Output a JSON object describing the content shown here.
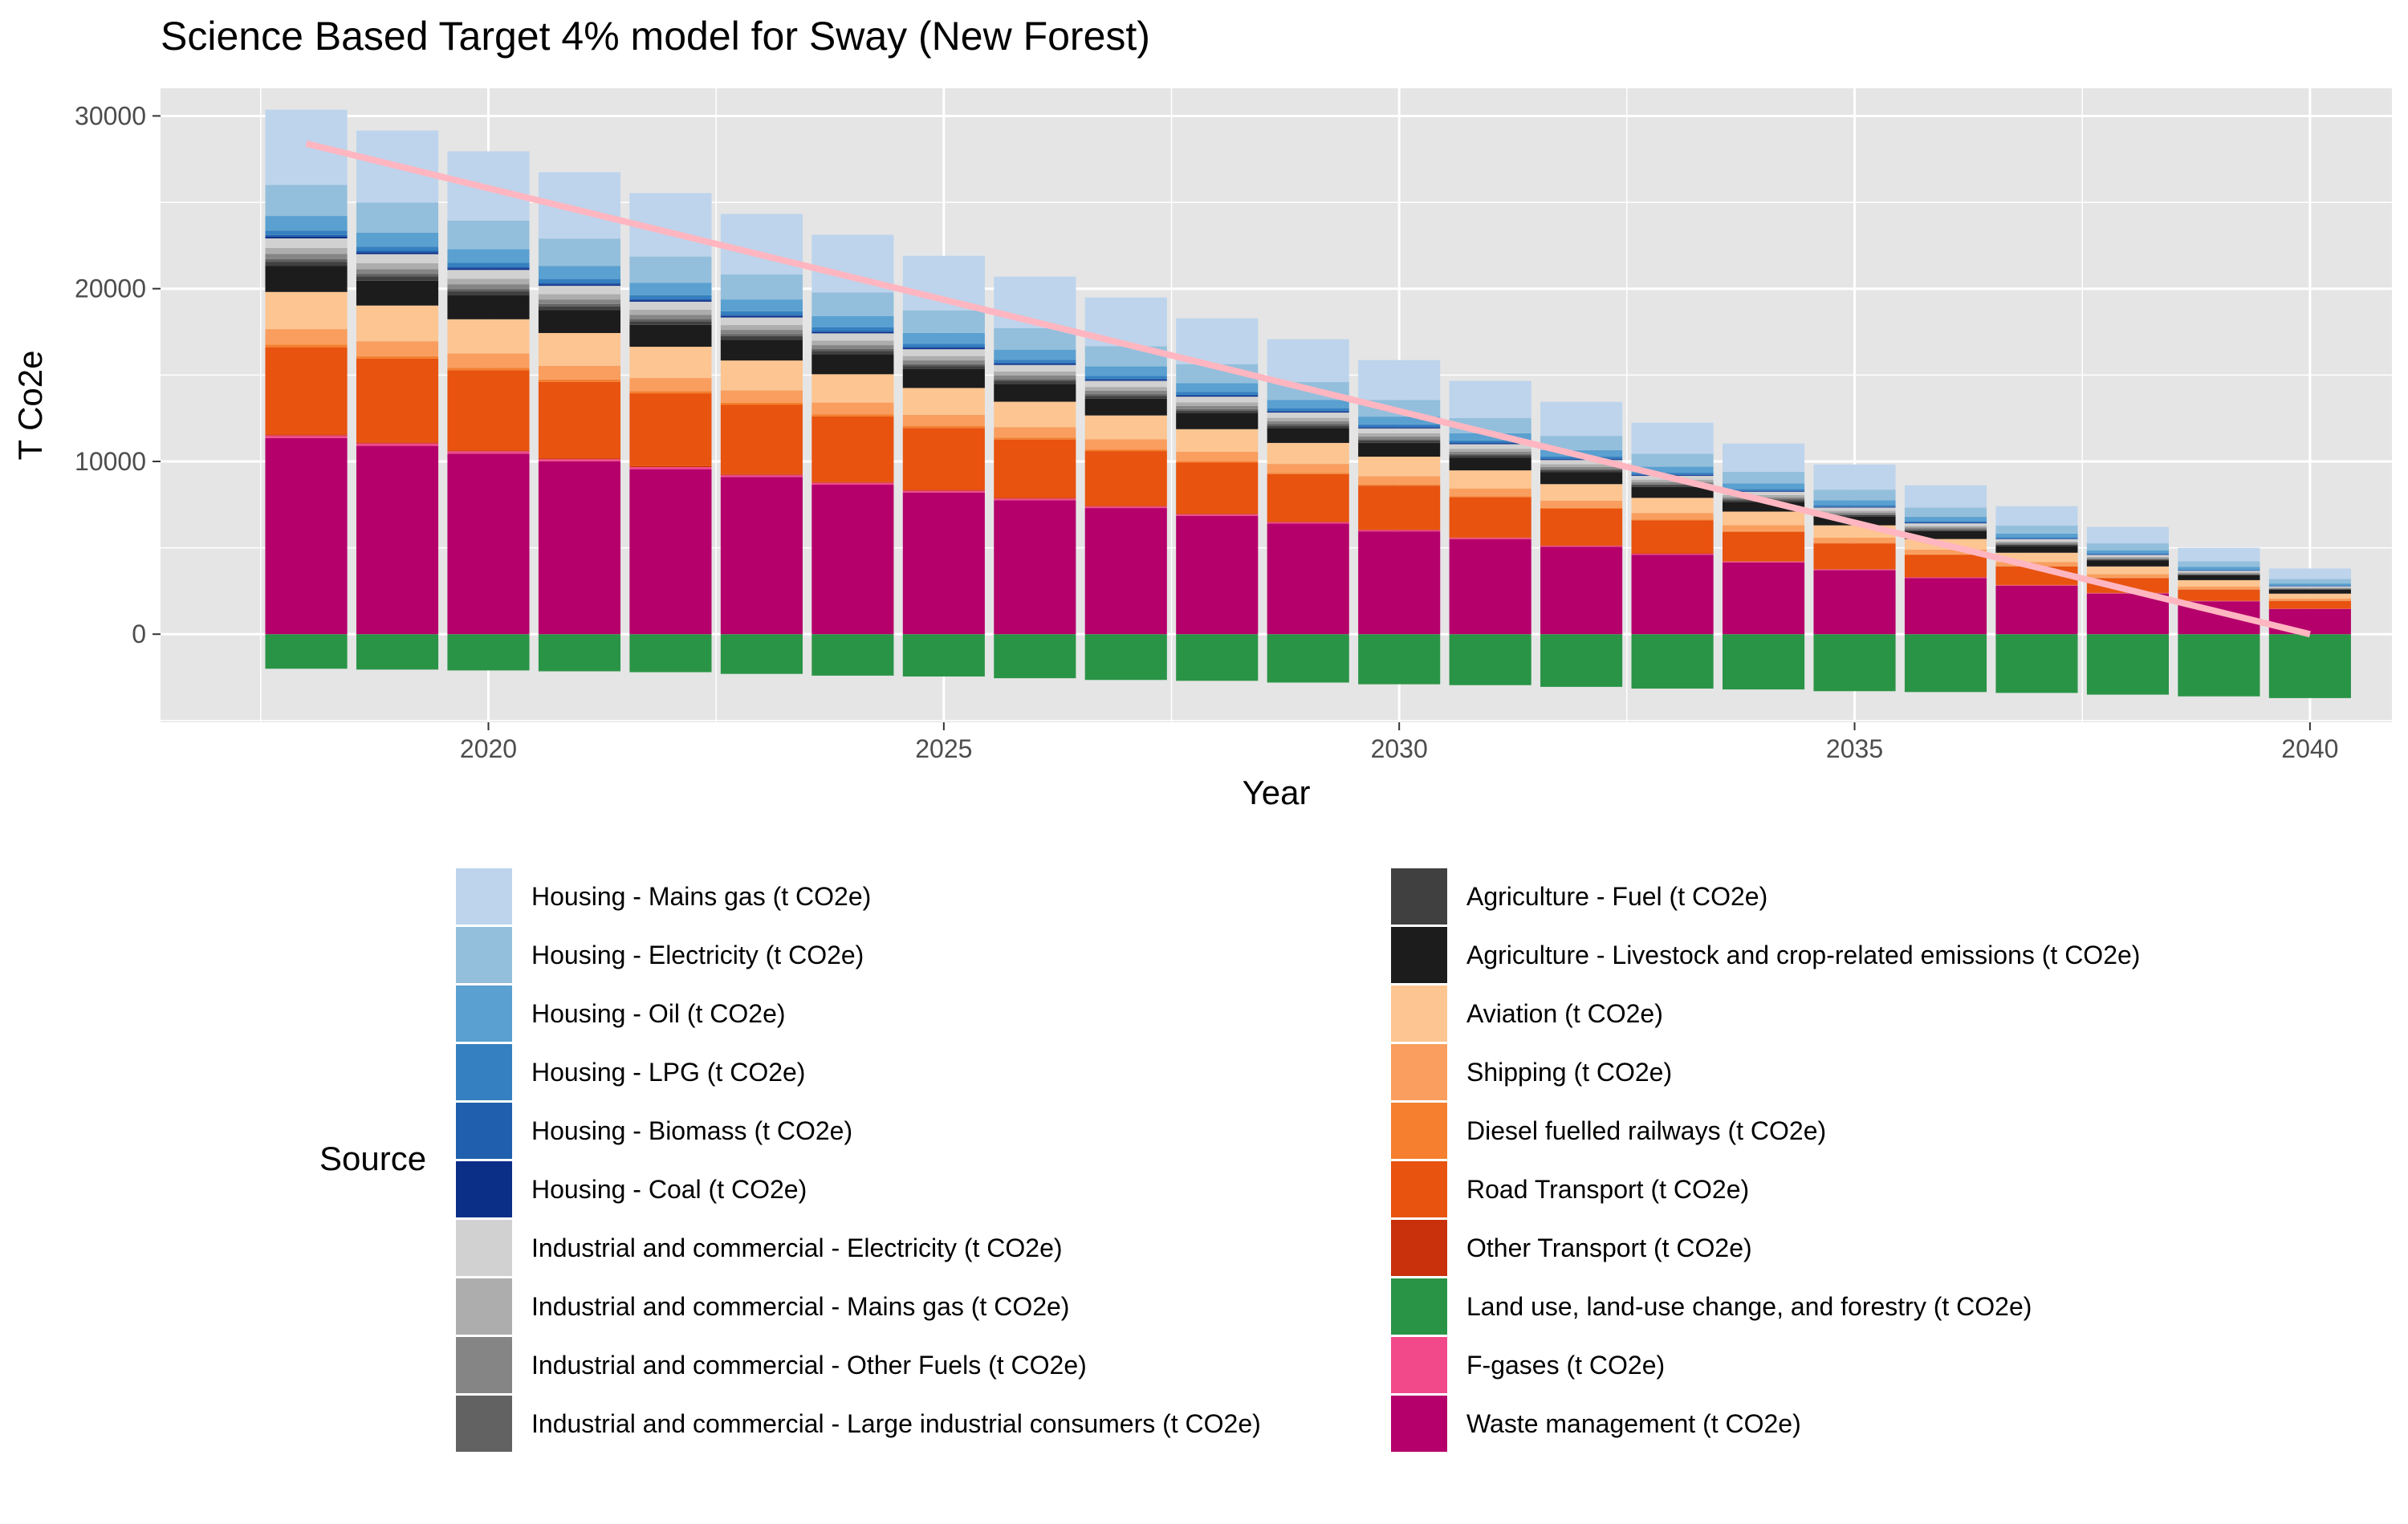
{
  "chart_data": {
    "type": "bar",
    "stacked": true,
    "title": "Science Based Target 4% model for Sway (New Forest)",
    "xlabel": "Year",
    "ylabel": "T Co2e",
    "x": [
      2018,
      2019,
      2020,
      2021,
      2022,
      2023,
      2024,
      2025,
      2026,
      2027,
      2028,
      2029,
      2030,
      2031,
      2032,
      2033,
      2034,
      2035,
      2036,
      2037,
      2038,
      2039,
      2040
    ],
    "xlim": [
      2016.4,
      2040.9
    ],
    "ylim": [
      -5100,
      31600
    ],
    "xticks": [
      2020,
      2025,
      2030,
      2035,
      2040
    ],
    "yticks": [
      0,
      10000,
      20000,
      30000
    ],
    "grid": true,
    "legend_title": "Source",
    "legend_position": "bottom",
    "series": [
      {
        "name": "Land use, land-use change, and forestry (t CO2e)",
        "color": "#2a9446",
        "values": [
          -2000,
          -2050,
          -2100,
          -2150,
          -2200,
          -2300,
          -2400,
          -2450,
          -2550,
          -2650,
          -2700,
          -2800,
          -2900,
          -2950,
          -3050,
          -3150,
          -3200,
          -3300,
          -3350,
          -3400,
          -3500,
          -3600,
          -3700
        ]
      },
      {
        "name": "Waste management (t CO2e)",
        "color": "#b5006b",
        "values": [
          11350,
          10900,
          10450,
          10000,
          9550,
          9100,
          8650,
          8200,
          7750,
          7300,
          6850,
          6400,
          5950,
          5500,
          5050,
          4600,
          4150,
          3700,
          3250,
          2800,
          2350,
          1900,
          1450
        ]
      },
      {
        "name": "F-gases (t CO2e)",
        "color": "#f1498a",
        "values": [
          150,
          140,
          135,
          128,
          122,
          116,
          110,
          104,
          98,
          92,
          86,
          80,
          74,
          68,
          62,
          56,
          50,
          44,
          40,
          34,
          28,
          22,
          18
        ]
      },
      {
        "name": "Other Transport (t CO2e)",
        "color": "#c9300c",
        "values": [
          60,
          58,
          55,
          52,
          50,
          47,
          45,
          42,
          40,
          37,
          35,
          32,
          30,
          28,
          25,
          22,
          20,
          18,
          16,
          14,
          12,
          10,
          8
        ]
      },
      {
        "name": "Road Transport (t CO2e)",
        "color": "#e8530f",
        "values": [
          5050,
          4850,
          4640,
          4430,
          4220,
          4010,
          3800,
          3590,
          3380,
          3170,
          2960,
          2750,
          2540,
          2330,
          2120,
          1910,
          1700,
          1490,
          1280,
          1070,
          860,
          650,
          450
        ]
      },
      {
        "name": "Diesel fuelled railways (t CO2e)",
        "color": "#f57f2e",
        "values": [
          150,
          145,
          138,
          132,
          125,
          118,
          112,
          105,
          98,
          92,
          85,
          78,
          72,
          65,
          58,
          52,
          45,
          38,
          32,
          26,
          20,
          15,
          10
        ]
      },
      {
        "name": "Shipping (t CO2e)",
        "color": "#f99e5f",
        "values": [
          900,
          865,
          830,
          795,
          760,
          725,
          690,
          655,
          620,
          585,
          550,
          515,
          480,
          445,
          410,
          375,
          340,
          305,
          270,
          235,
          200,
          165,
          130
        ]
      },
      {
        "name": "Aviation (t CO2e)",
        "color": "#fdc591",
        "values": [
          2150,
          2065,
          1980,
          1895,
          1810,
          1725,
          1640,
          1555,
          1470,
          1385,
          1300,
          1215,
          1130,
          1045,
          960,
          875,
          790,
          705,
          620,
          535,
          450,
          365,
          280
        ]
      },
      {
        "name": "Agriculture - Livestock and crop-related emissions (t CO2e)",
        "color": "#1c1c1c",
        "values": [
          1500,
          1440,
          1385,
          1325,
          1265,
          1210,
          1150,
          1090,
          1035,
          975,
          920,
          860,
          800,
          745,
          685,
          630,
          570,
          510,
          455,
          395,
          340,
          280,
          220
        ]
      },
      {
        "name": "Agriculture - Fuel (t CO2e)",
        "color": "#404040",
        "values": [
          250,
          240,
          231,
          221,
          211,
          202,
          192,
          182,
          173,
          163,
          153,
          144,
          134,
          124,
          115,
          105,
          95,
          86,
          76,
          66,
          57,
          47,
          37
        ]
      },
      {
        "name": "Industrial and commercial - Large industrial consumers (t CO2e)",
        "color": "#626262",
        "values": [
          150,
          144,
          138,
          132,
          126,
          120,
          114,
          108,
          102,
          96,
          90,
          84,
          78,
          72,
          66,
          60,
          54,
          48,
          42,
          36,
          30,
          24,
          18
        ]
      },
      {
        "name": "Industrial and commercial - Other Fuels (t CO2e)",
        "color": "#858585",
        "values": [
          300,
          288,
          276,
          264,
          252,
          240,
          228,
          216,
          204,
          192,
          180,
          168,
          156,
          144,
          132,
          120,
          108,
          96,
          84,
          72,
          60,
          48,
          36
        ]
      },
      {
        "name": "Industrial and commercial - Mains gas (t CO2e)",
        "color": "#adadad",
        "values": [
          350,
          336,
          322,
          308,
          294,
          280,
          266,
          252,
          238,
          224,
          210,
          196,
          182,
          168,
          154,
          140,
          126,
          112,
          98,
          84,
          70,
          56,
          42
        ]
      },
      {
        "name": "Industrial and commercial - Electricity (t CO2e)",
        "color": "#d1d1d1",
        "values": [
          550,
          528,
          506,
          484,
          462,
          440,
          418,
          396,
          374,
          352,
          330,
          308,
          286,
          264,
          242,
          220,
          198,
          176,
          154,
          132,
          110,
          88,
          66
        ]
      },
      {
        "name": "Housing - Coal (t CO2e)",
        "color": "#0b2e87",
        "values": [
          100,
          96,
          92,
          88,
          84,
          80,
          76,
          72,
          68,
          64,
          60,
          56,
          52,
          48,
          44,
          40,
          36,
          32,
          28,
          24,
          20,
          16,
          12
        ]
      },
      {
        "name": "Housing - Biomass (t CO2e)",
        "color": "#1f5fad",
        "values": [
          100,
          96,
          92,
          88,
          84,
          80,
          76,
          72,
          68,
          64,
          60,
          56,
          52,
          48,
          44,
          40,
          36,
          32,
          28,
          24,
          20,
          16,
          12
        ]
      },
      {
        "name": "Housing - LPG (t CO2e)",
        "color": "#3580c0",
        "values": [
          250,
          240,
          230,
          220,
          210,
          200,
          190,
          180,
          170,
          160,
          150,
          140,
          130,
          120,
          110,
          100,
          90,
          80,
          70,
          60,
          50,
          40,
          30
        ]
      },
      {
        "name": "Housing - Oil (t CO2e)",
        "color": "#5aa0d0",
        "values": [
          850,
          817,
          783,
          750,
          716,
          683,
          649,
          616,
          582,
          549,
          515,
          482,
          448,
          415,
          381,
          348,
          314,
          281,
          247,
          214,
          180,
          147,
          113
        ]
      },
      {
        "name": "Housing - Electricity (t CO2e)",
        "color": "#93bfdc",
        "values": [
          1800,
          1730,
          1660,
          1590,
          1520,
          1450,
          1380,
          1310,
          1240,
          1170,
          1100,
          1030,
          960,
          890,
          820,
          750,
          680,
          610,
          540,
          470,
          400,
          330,
          260
        ]
      },
      {
        "name": "Housing - Mains gas (t CO2e)",
        "color": "#bdd4ec",
        "values": [
          4350,
          4180,
          4010,
          3840,
          3670,
          3500,
          3330,
          3160,
          2990,
          2820,
          2650,
          2480,
          2310,
          2140,
          1970,
          1800,
          1630,
          1460,
          1290,
          1120,
          950,
          780,
          610
        ]
      }
    ],
    "target_line": {
      "color": "#ffb6c1",
      "x": [
        2018,
        2040
      ],
      "y": [
        28400,
        0
      ]
    },
    "legend_columns": [
      [
        "Housing - Mains gas (t CO2e)",
        "Housing - Electricity (t CO2e)",
        "Housing - Oil (t CO2e)",
        "Housing - LPG (t CO2e)",
        "Housing - Biomass (t CO2e)",
        "Housing - Coal (t CO2e)",
        "Industrial and commercial - Electricity (t CO2e)",
        "Industrial and commercial - Mains gas (t CO2e)",
        "Industrial and commercial - Other Fuels (t CO2e)",
        "Industrial and commercial - Large industrial consumers (t CO2e)"
      ],
      [
        "Agriculture - Fuel (t CO2e)",
        "Agriculture - Livestock and crop-related emissions (t CO2e)",
        "Aviation (t CO2e)",
        "Shipping (t CO2e)",
        "Diesel fuelled railways (t CO2e)",
        "Road Transport (t CO2e)",
        "Other Transport (t CO2e)",
        "Land use, land-use change, and forestry (t CO2e)",
        "F-gases (t CO2e)",
        "Waste management (t CO2e)"
      ]
    ]
  }
}
